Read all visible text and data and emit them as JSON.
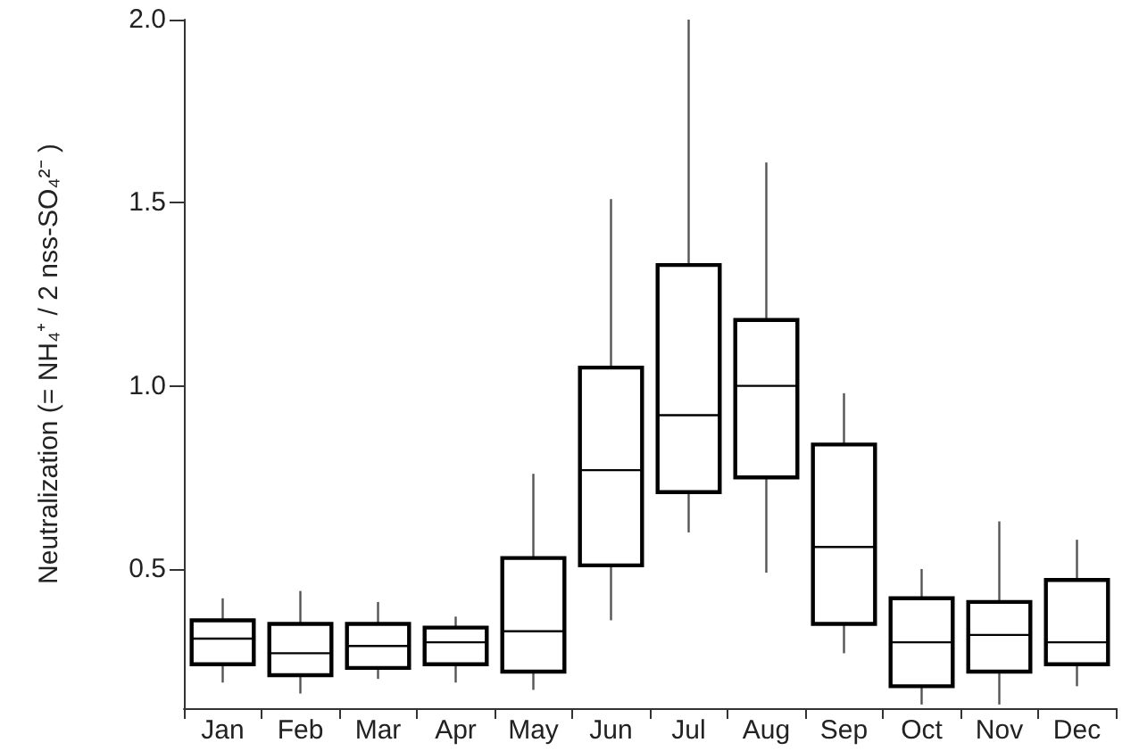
{
  "chart_data": {
    "type": "box",
    "ylabel": "Neutralization (= NH₄⁺ / 2 nss-SO₄²⁻ )",
    "categories": [
      "Jan",
      "Feb",
      "Mar",
      "Apr",
      "May",
      "Jun",
      "Jul",
      "Aug",
      "Sep",
      "Oct",
      "Nov",
      "Dec"
    ],
    "boxes": [
      {
        "low": 0.19,
        "q1": 0.24,
        "median": 0.31,
        "q3": 0.36,
        "high": 0.42
      },
      {
        "low": 0.16,
        "q1": 0.21,
        "median": 0.27,
        "q3": 0.35,
        "high": 0.44
      },
      {
        "low": 0.2,
        "q1": 0.23,
        "median": 0.29,
        "q3": 0.35,
        "high": 0.41
      },
      {
        "low": 0.19,
        "q1": 0.24,
        "median": 0.3,
        "q3": 0.34,
        "high": 0.37
      },
      {
        "low": 0.17,
        "q1": 0.22,
        "median": 0.33,
        "q3": 0.53,
        "high": 0.76
      },
      {
        "low": 0.36,
        "q1": 0.51,
        "median": 0.77,
        "q3": 1.05,
        "high": 1.51
      },
      {
        "low": 0.6,
        "q1": 0.71,
        "median": 0.92,
        "q3": 1.33,
        "high": 2.0
      },
      {
        "low": 0.49,
        "q1": 0.75,
        "median": 1.0,
        "q3": 1.18,
        "high": 1.61
      },
      {
        "low": 0.27,
        "q1": 0.35,
        "median": 0.56,
        "q3": 0.84,
        "high": 0.98
      },
      {
        "low": 0.13,
        "q1": 0.18,
        "median": 0.3,
        "q3": 0.42,
        "high": 0.5
      },
      {
        "low": 0.13,
        "q1": 0.22,
        "median": 0.32,
        "q3": 0.41,
        "high": 0.63
      },
      {
        "low": 0.18,
        "q1": 0.24,
        "median": 0.3,
        "q3": 0.47,
        "high": 0.58
      }
    ],
    "color": "#000000",
    "ylim": [
      0.12,
      2.0
    ],
    "yticks": [
      {
        "value": 0.5,
        "label": "0.5"
      },
      {
        "value": 1.0,
        "label": "1.0"
      },
      {
        "value": 1.5,
        "label": "1.5"
      },
      {
        "value": 2.0,
        "label": "2.0"
      }
    ],
    "grid": false
  }
}
